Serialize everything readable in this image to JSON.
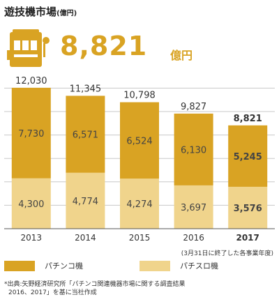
{
  "header": {
    "title": "遊技機市場",
    "title_unit": "(億円)",
    "total_value": "8,821",
    "total_unit": "億円"
  },
  "chart_data": {
    "type": "bar",
    "stacked": true,
    "categories": [
      "2013",
      "2014",
      "2015",
      "2016",
      "2017"
    ],
    "highlight_category": "2017",
    "series": [
      {
        "name": "パチスロ機",
        "values": [
          4300,
          4774,
          4274,
          3697,
          3576
        ],
        "labels": [
          "4,300",
          "4,774",
          "4,274",
          "3,697",
          "3,576"
        ],
        "color": "#f0d48c"
      },
      {
        "name": "パチンコ機",
        "values": [
          7730,
          6571,
          6524,
          6130,
          5245
        ],
        "labels": [
          "7,730",
          "6,571",
          "6,524",
          "6,130",
          "5,245"
        ],
        "color": "#d9a323"
      }
    ],
    "totals": [
      12030,
      11345,
      10798,
      9827,
      8821
    ],
    "total_labels": [
      "12,030",
      "11,345",
      "10,798",
      "9,827",
      "8,821"
    ],
    "ylim": [
      0,
      12500
    ],
    "grid": true
  },
  "note": "(3月31日に終了した各事業年度)",
  "legend": [
    {
      "label": "パチンコ機",
      "color": "#d9a323"
    },
    {
      "label": "パチスロ機",
      "color": "#f0d48c"
    }
  ],
  "source": {
    "line1": "*出典:矢野経済研究所「パチンコ関連機器市場に関する調査結果",
    "line2": "2016、2017」を基に当社作成"
  },
  "colors": {
    "accent": "#d9a323",
    "light": "#f0d48c"
  }
}
